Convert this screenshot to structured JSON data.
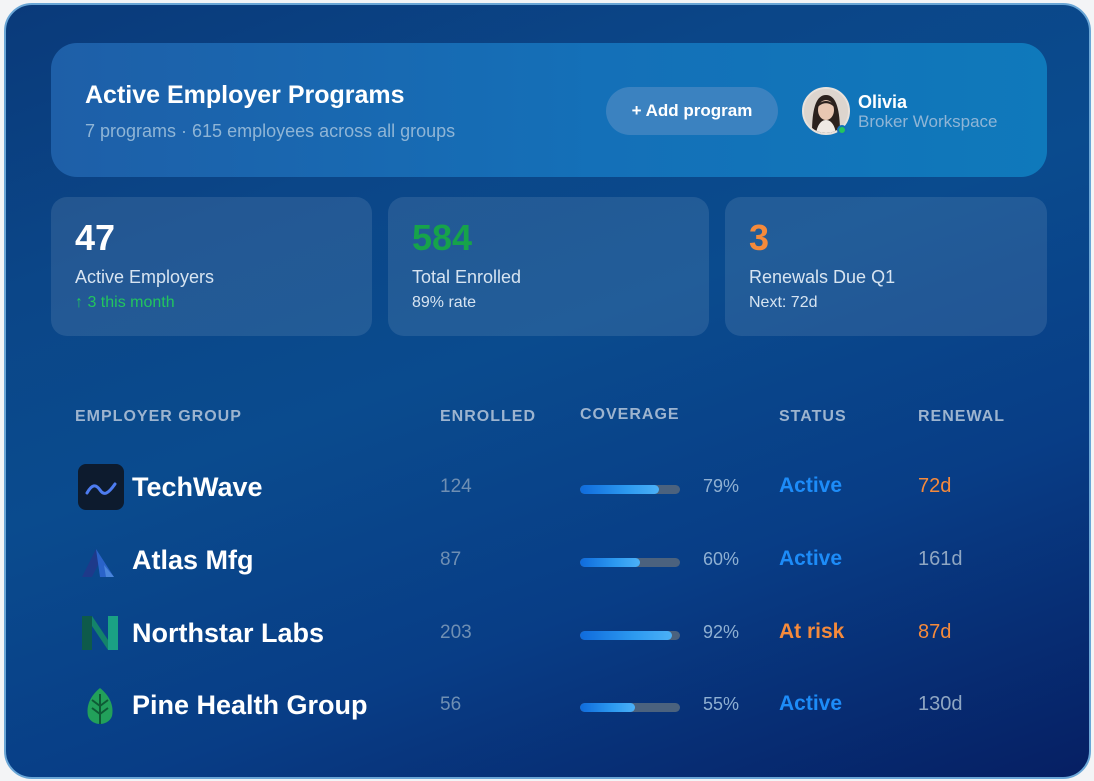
{
  "header": {
    "title": "Active Employer Programs",
    "subtitle": "7 programs · 615 employees across all groups",
    "add_button": "+ Add program",
    "user": {
      "name": "Olivia",
      "role": "Broker Workspace",
      "online": true
    }
  },
  "stats": [
    {
      "value": "47",
      "label": "Active Employers",
      "note": "↑ 3 this month",
      "value_color": "#ffffff",
      "note_color": "#22c55e"
    },
    {
      "value": "584",
      "label": "Total Enrolled",
      "note": "89% rate",
      "value_color": "#16a34a",
      "note_color": "#d7e4f1"
    },
    {
      "value": "3",
      "label": "Renewals Due Q1",
      "note": "Next: 72d",
      "value_color": "#f58a3b",
      "note_color": "#d7e4f1"
    }
  ],
  "table": {
    "headers": [
      "EMPLOYER GROUP",
      "ENROLLED",
      "COVERAGE",
      "STATUS",
      "RENEWAL"
    ],
    "rows": [
      {
        "name": "TechWave",
        "logo": "techwave-logo-icon",
        "enrolled": "124",
        "coverage": 79,
        "coverage_label": "79%",
        "status": "Active",
        "status_color": "#1d8cf8",
        "renewal": "72d",
        "renewal_color": "#f58a3b"
      },
      {
        "name": "Atlas Mfg",
        "logo": "atlas-logo-icon",
        "enrolled": "87",
        "coverage": 60,
        "coverage_label": "60%",
        "status": "Active",
        "status_color": "#1d8cf8",
        "renewal": "161d",
        "renewal_color": "#8fa6c2"
      },
      {
        "name": "Northstar Labs",
        "logo": "northstar-logo-icon",
        "enrolled": "203",
        "coverage": 92,
        "coverage_label": "92%",
        "status": "At risk",
        "status_color": "#f58a3b",
        "renewal": "87d",
        "renewal_color": "#f58a3b"
      },
      {
        "name": "Pine Health Group",
        "logo": "pine-leaf-logo-icon",
        "enrolled": "56",
        "coverage": 55,
        "coverage_label": "55%",
        "status": "Active",
        "status_color": "#1d8cf8",
        "renewal": "130d",
        "renewal_color": "#8fa6c2"
      }
    ]
  }
}
